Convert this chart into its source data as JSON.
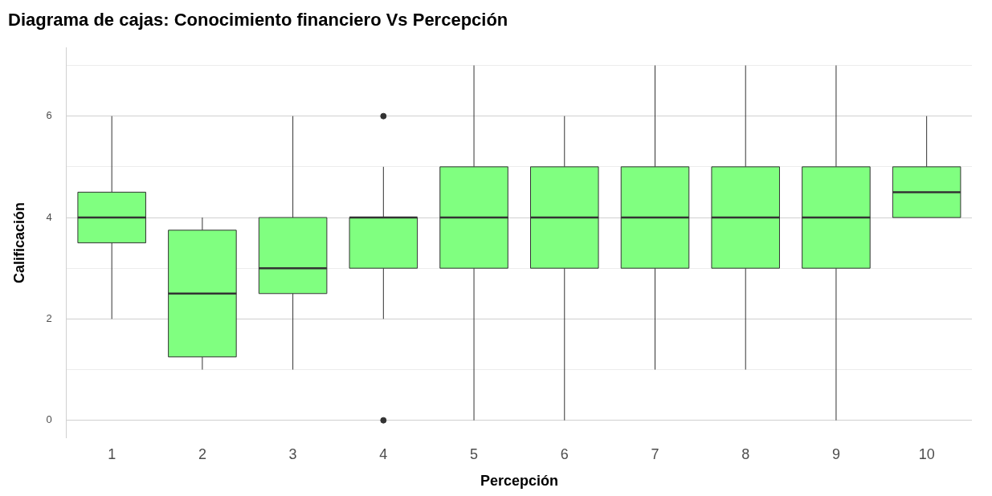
{
  "chart_data": {
    "type": "box",
    "title": "Diagrama de cajas: Conocimiento financiero Vs Percepción",
    "xlabel": "Percepción",
    "ylabel": "Calificación",
    "categories": [
      "1",
      "2",
      "3",
      "4",
      "5",
      "6",
      "7",
      "8",
      "9",
      "10"
    ],
    "color": "#80ff80",
    "boxes": [
      {
        "low": 2,
        "q1": 3.5,
        "median": 4,
        "q3": 4.5,
        "high": 6
      },
      {
        "low": 1,
        "q1": 1.25,
        "median": 2.5,
        "q3": 3.75,
        "high": 4
      },
      {
        "low": 1,
        "q1": 2.5,
        "median": 3,
        "q3": 4,
        "high": 6
      },
      {
        "low": 2,
        "q1": 3,
        "median": 4,
        "q3": 4,
        "high": 5,
        "outliers": [
          6,
          0
        ]
      },
      {
        "low": 0,
        "q1": 3,
        "median": 4,
        "q3": 5,
        "high": 7
      },
      {
        "low": 0,
        "q1": 3,
        "median": 4,
        "q3": 5,
        "high": 6
      },
      {
        "low": 1,
        "q1": 3,
        "median": 4,
        "q3": 5,
        "high": 7
      },
      {
        "low": 1,
        "q1": 3,
        "median": 4,
        "q3": 5,
        "high": 7
      },
      {
        "low": 0,
        "q1": 3,
        "median": 4,
        "q3": 5,
        "high": 7
      },
      {
        "low": 4,
        "q1": 4,
        "median": 4.5,
        "q3": 5,
        "high": 6
      }
    ],
    "ylim": [
      -0.35,
      7.35
    ],
    "yticks": [
      0,
      {
        "value": 1,
        "label": null
      },
      2,
      {
        "value": 3,
        "label": null
      },
      4,
      {
        "value": 5,
        "label": null
      },
      6,
      {
        "value": 7,
        "label": null
      }
    ],
    "grid": "y"
  }
}
